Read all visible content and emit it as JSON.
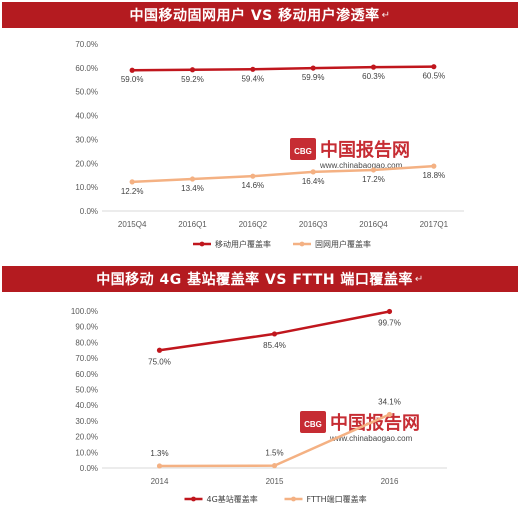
{
  "panels": [
    {
      "banner_title": "中国移动固网用户 VS 移动用户渗透率",
      "banner_mark": "↵",
      "watermark_cn": "中国报告网",
      "watermark_url": "www.chinabaogao.com",
      "watermark_logo": "CBG",
      "chart_data": {
        "type": "line",
        "title": "中国移动固网用户 VS 移动用户渗透率",
        "categories": [
          "2015Q4",
          "2016Q1",
          "2016Q2",
          "2016Q3",
          "2016Q4",
          "2017Q1"
        ],
        "y_ticks": [
          "0.0%",
          "10.0%",
          "20.0%",
          "30.0%",
          "40.0%",
          "50.0%",
          "60.0%",
          "70.0%"
        ],
        "ylim": [
          0,
          70
        ],
        "grid": false,
        "legend_position": "bottom",
        "series": [
          {
            "name": "移动用户覆盖率",
            "color": "#c0161d",
            "values": [
              59.0,
              59.2,
              59.4,
              59.9,
              60.3,
              60.5
            ],
            "labels": [
              "59.0%",
              "59.2%",
              "59.4%",
              "59.9%",
              "60.3%",
              "60.5%"
            ]
          },
          {
            "name": "固网用户覆盖率",
            "color": "#f4b183",
            "values": [
              12.2,
              13.4,
              14.6,
              16.4,
              17.2,
              18.8
            ],
            "labels": [
              "12.2%",
              "13.4%",
              "14.6%",
              "16.4%",
              "17.2%",
              "18.8%"
            ]
          }
        ]
      }
    },
    {
      "banner_title": "中国移动 4G 基站覆盖率 VS FTTH 端口覆盖率",
      "banner_mark": "↵",
      "watermark_cn": "中国报告网",
      "watermark_url": "www.chinabaogao.com",
      "watermark_logo": "CBG",
      "chart_data": {
        "type": "line",
        "title": "中国移动 4G 基站覆盖率 VS FTTH 端口覆盖率",
        "categories": [
          "2014",
          "2015",
          "2016"
        ],
        "y_ticks": [
          "0.0%",
          "10.0%",
          "20.0%",
          "30.0%",
          "40.0%",
          "50.0%",
          "60.0%",
          "70.0%",
          "80.0%",
          "90.0%",
          "100.0%"
        ],
        "ylim": [
          0,
          100
        ],
        "grid": false,
        "legend_position": "bottom",
        "series": [
          {
            "name": "4G基站覆盖率",
            "color": "#c0161d",
            "values": [
              75.0,
              85.4,
              99.7
            ],
            "labels": [
              "75.0%",
              "85.4%",
              "99.7%"
            ]
          },
          {
            "name": "FTTH端口覆盖率",
            "color": "#f4b183",
            "values": [
              1.3,
              1.5,
              34.1
            ],
            "labels": [
              "1.3%",
              "1.5%",
              "34.1%"
            ]
          }
        ]
      }
    }
  ]
}
